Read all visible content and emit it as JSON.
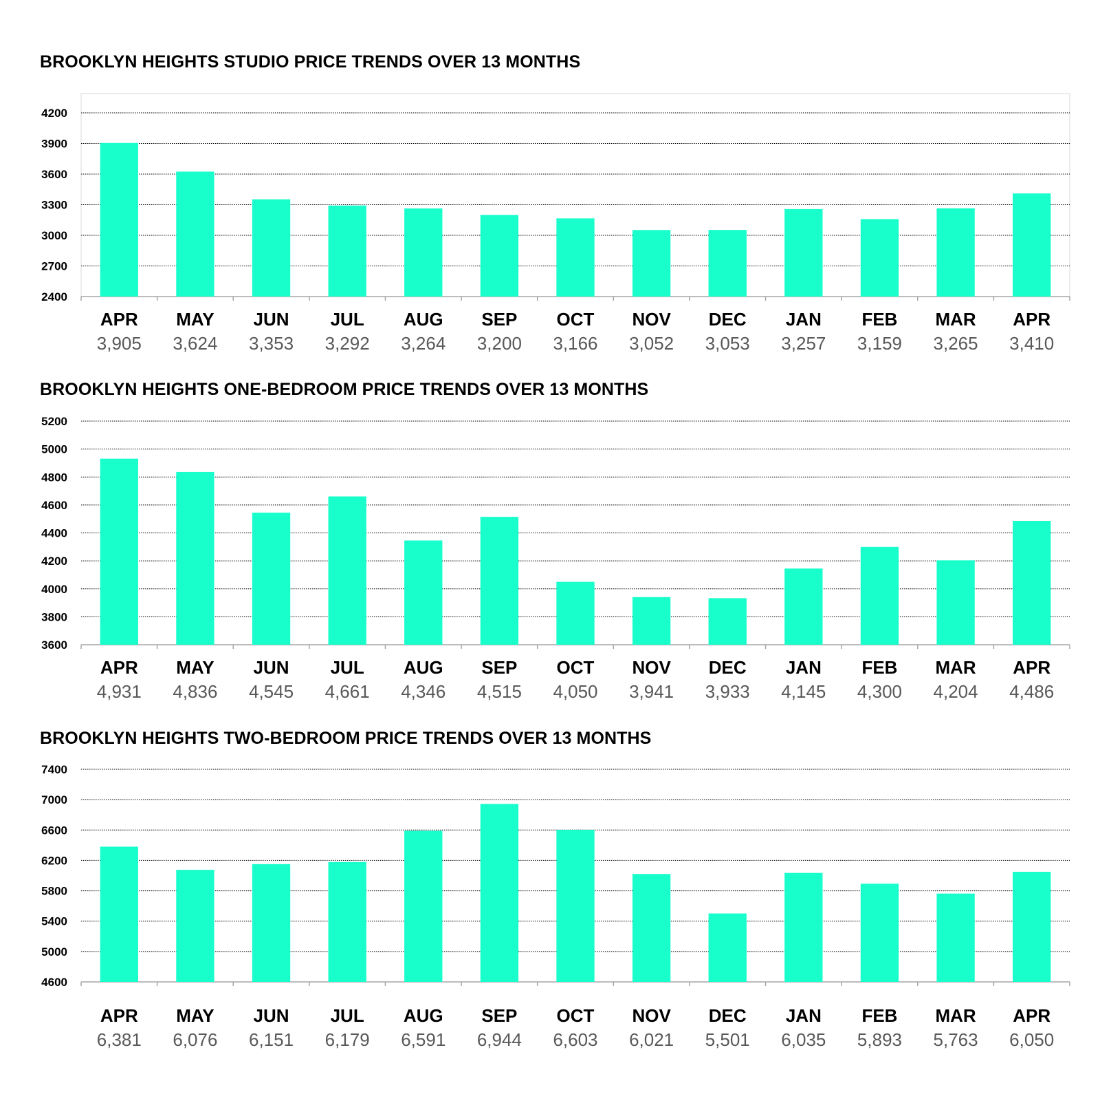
{
  "colors": {
    "bar": "#19FFCC",
    "grid": "#000000",
    "axis": "#A6A6A6",
    "value_text": "#595959"
  },
  "chart_data": [
    {
      "type": "bar",
      "title": "BROOKLYN HEIGHTS STUDIO PRICE TRENDS OVER 13 MONTHS",
      "categories": [
        "APR",
        "MAY",
        "JUN",
        "JUL",
        "AUG",
        "SEP",
        "OCT",
        "NOV",
        "DEC",
        "JAN",
        "FEB",
        "MAR",
        "APR"
      ],
      "values": [
        3905,
        3624,
        3353,
        3292,
        3264,
        3200,
        3166,
        3052,
        3053,
        3257,
        3159,
        3265,
        3410
      ],
      "value_labels": [
        "3,905",
        "3,624",
        "3,353",
        "3,292",
        "3,264",
        "3,200",
        "3,166",
        "3,052",
        "3,053",
        "3,257",
        "3,159",
        "3,265",
        "3,410"
      ],
      "yticks": [
        "4200",
        "3900",
        "3600",
        "3300",
        "3000",
        "2700",
        "2400"
      ],
      "ylim": [
        2400,
        4200
      ],
      "grid": true,
      "plot_border": true
    },
    {
      "type": "bar",
      "title": "BROOKLYN HEIGHTS ONE-BEDROOM PRICE TRENDS OVER 13 MONTHS",
      "categories": [
        "APR",
        "MAY",
        "JUN",
        "JUL",
        "AUG",
        "SEP",
        "OCT",
        "NOV",
        "DEC",
        "JAN",
        "FEB",
        "MAR",
        "APR"
      ],
      "values": [
        4931,
        4836,
        4545,
        4661,
        4346,
        4515,
        4050,
        3941,
        3933,
        4145,
        4300,
        4204,
        4486
      ],
      "value_labels": [
        "4,931",
        "4,836",
        "4,545",
        "4,661",
        "4,346",
        "4,515",
        "4,050",
        "3,941",
        "3,933",
        "4,145",
        "4,300",
        "4,204",
        "4,486"
      ],
      "yticks": [
        "5200",
        "5000",
        "4800",
        "4600",
        "4400",
        "4200",
        "4000",
        "3800",
        "3600"
      ],
      "ylim": [
        3600,
        5200
      ],
      "grid": true,
      "plot_border": false
    },
    {
      "type": "bar",
      "title": "BROOKLYN HEIGHTS TWO-BEDROOM PRICE TRENDS OVER 13 MONTHS",
      "categories": [
        "APR",
        "MAY",
        "JUN",
        "JUL",
        "AUG",
        "SEP",
        "OCT",
        "NOV",
        "DEC",
        "JAN",
        "FEB",
        "MAR",
        "APR"
      ],
      "values": [
        6381,
        6076,
        6151,
        6179,
        6591,
        6944,
        6603,
        6021,
        5501,
        6035,
        5893,
        5763,
        6050
      ],
      "value_labels": [
        "6,381",
        "6,076",
        "6,151",
        "6,179",
        "6,591",
        "6,944",
        "6,603",
        "6,021",
        "5,501",
        "6,035",
        "5,893",
        "5,763",
        "6,050"
      ],
      "yticks": [
        "7400",
        "7000",
        "6600",
        "6200",
        "5800",
        "5400",
        "5000",
        "4600"
      ],
      "ylim": [
        4600,
        7400
      ],
      "grid": true,
      "plot_border": false
    }
  ]
}
